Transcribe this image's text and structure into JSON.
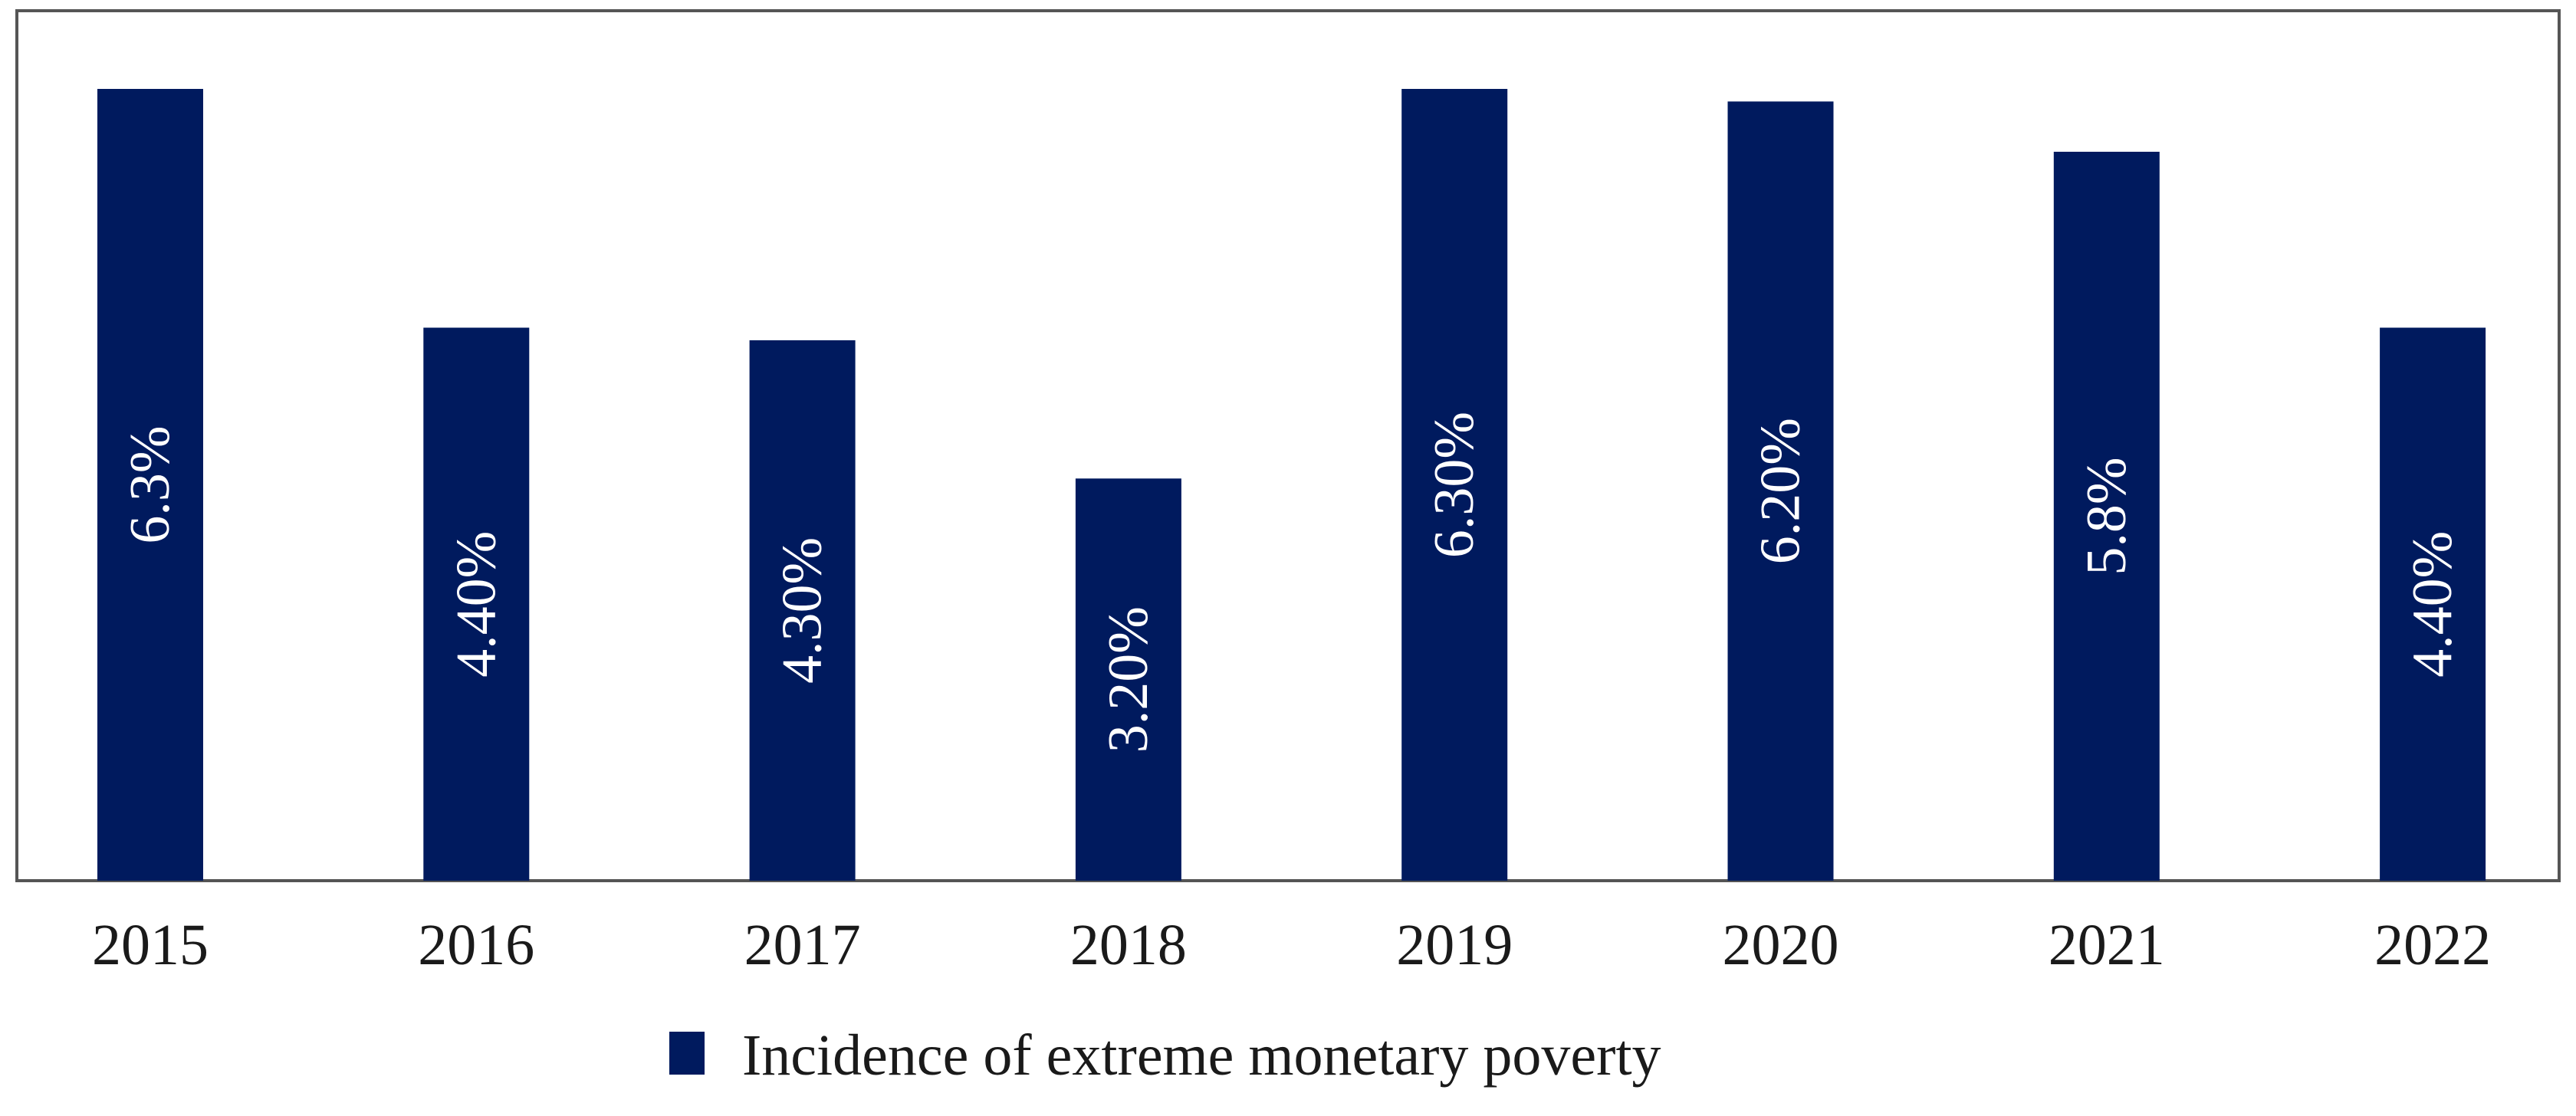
{
  "chart_data": {
    "type": "bar",
    "categories": [
      "2015",
      "2016",
      "2017",
      "2018",
      "2019",
      "2020",
      "2021",
      "2022"
    ],
    "values": [
      6.3,
      4.4,
      4.3,
      3.2,
      6.3,
      6.2,
      5.8,
      4.4
    ],
    "data_labels": [
      "6.3%",
      "4.40%",
      "4.30%",
      "3.20%",
      "6.30%",
      "6.20%",
      "5.8%",
      "4.40%"
    ],
    "series": [
      {
        "name": "Incidence of extreme monetary poverty",
        "values": [
          6.3,
          4.4,
          4.3,
          3.2,
          6.3,
          6.2,
          5.8,
          4.4
        ]
      }
    ],
    "title": "",
    "xlabel": "",
    "ylabel": "",
    "ylim": [
      0,
      6.3
    ],
    "grid": false,
    "legend_position": "bottom",
    "bar_color": "#001a5e"
  }
}
